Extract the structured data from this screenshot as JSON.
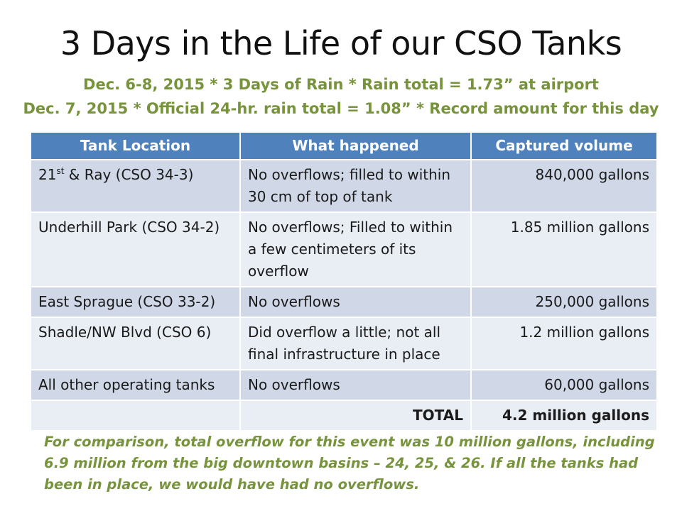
{
  "title": "3 Days in the Life of our CSO Tanks",
  "subtitles": [
    "Dec. 6-8, 2015 * 3 Days of Rain * Rain total = 1.73” at airport",
    "Dec. 7, 2015 * Official 24-hr. rain total = 1.08” * Record amount for this day"
  ],
  "table": {
    "headers": [
      "Tank Location",
      "What happened",
      "Captured volume"
    ],
    "rows": [
      {
        "location_prefix": "21",
        "location_sup": "st",
        "location_suffix": " & Ray (CSO 34-3)",
        "what": "No overflows; filled to within 30 cm of top of tank",
        "volume": "840,000 gallons"
      },
      {
        "location": "Underhill Park (CSO 34-2)",
        "what": "No overflows; Filled to within a few centimeters of its overflow",
        "volume": "1.85 million gallons"
      },
      {
        "location": "East Sprague (CSO 33-2)",
        "what": "No overflows",
        "volume": "250,000 gallons"
      },
      {
        "location": "Shadle/NW Blvd (CSO 6)",
        "what": "Did overflow a little; not all final infrastructure in place",
        "volume": "1.2 million gallons"
      },
      {
        "location": "All other operating tanks",
        "what": "No overflows",
        "volume": "60,000 gallons"
      }
    ],
    "total_label": "TOTAL",
    "total_value": "4.2 million gallons"
  },
  "footnote": "For comparison, total overflow for this event was 10 million gallons, including 6.9 million from the big downtown basins – 24, 25, & 26. If all the tanks had been in place, we would have had no overflows.",
  "colors": {
    "header_blue": "#4f81bd",
    "row_dark": "#d0d8e8",
    "row_light": "#e9edf4",
    "accent_green": "#77933c"
  }
}
